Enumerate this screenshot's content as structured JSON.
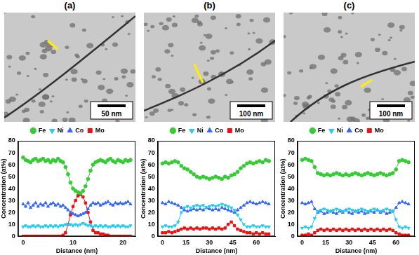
{
  "chart_data": [
    {
      "type": "line",
      "title": "(a)",
      "annotations": [
        "50 nm"
      ],
      "x_label": "Distance (nm)",
      "y_label": "Concentration (at%)",
      "xlim": [
        -1,
        22.5
      ],
      "xticks": [
        0,
        10,
        20
      ],
      "ylim": [
        0,
        80
      ],
      "yticks": [
        0,
        10,
        20,
        30,
        40,
        50,
        60,
        70,
        80
      ],
      "legend": "top",
      "grid": false,
      "x": [
        0,
        0.5,
        1,
        1.5,
        2,
        2.5,
        3,
        3.5,
        4,
        4.5,
        5,
        5.5,
        6,
        6.5,
        7,
        7.5,
        8,
        8.5,
        9,
        9.5,
        10,
        10.5,
        11,
        11.5,
        12,
        12.5,
        13,
        13.5,
        14,
        14.5,
        15,
        15.5,
        16,
        16.5,
        17,
        17.5,
        18,
        18.5,
        19,
        19.5,
        20,
        20.5,
        21,
        21.5
      ],
      "series": [
        {
          "name": "Fe",
          "color": "#33cc33",
          "marker": "circle",
          "line_style": "solid",
          "values": [
            66,
            64,
            63,
            62,
            64,
            65,
            63,
            64,
            65,
            63,
            64,
            62,
            64,
            63,
            65,
            63,
            62,
            58,
            52,
            45,
            40,
            38,
            37,
            36,
            38,
            42,
            48,
            55,
            60,
            62,
            63,
            64,
            63,
            62,
            64,
            65,
            63,
            62,
            64,
            63,
            62,
            64,
            63,
            64
          ]
        },
        {
          "name": "Ni",
          "color": "#22ccee",
          "marker": "triangle_down",
          "line_style": "solid",
          "values": [
            8,
            9,
            8,
            8,
            9,
            8,
            9,
            8,
            8,
            9,
            8,
            9,
            8,
            9,
            8,
            9,
            9,
            10,
            10,
            10,
            9,
            10,
            9,
            10,
            11,
            10,
            9,
            9,
            8,
            9,
            8,
            9,
            8,
            9,
            8,
            8,
            9,
            8,
            9,
            8,
            9,
            8,
            8,
            9
          ]
        },
        {
          "name": "Co",
          "color": "#3366ff",
          "marker": "triangle",
          "line_style": "solid",
          "values": [
            27,
            25,
            28,
            24,
            26,
            28,
            25,
            27,
            26,
            28,
            25,
            27,
            28,
            26,
            27,
            25,
            26,
            24,
            22,
            20,
            19,
            18,
            17,
            18,
            19,
            20,
            23,
            26,
            28,
            27,
            28,
            26,
            27,
            28,
            29,
            27,
            26,
            28,
            27,
            28,
            27,
            28,
            29,
            27
          ]
        },
        {
          "name": "Mo",
          "color": "#ee1111",
          "marker": "square",
          "line_style": "solid",
          "values": [
            0,
            0,
            0,
            0,
            0,
            0,
            0,
            0,
            0,
            0,
            0,
            0,
            0,
            0,
            0,
            0,
            1,
            3,
            10,
            18,
            25,
            30,
            34,
            35,
            33,
            28,
            20,
            12,
            5,
            3,
            3,
            2,
            2,
            1,
            1,
            0,
            0,
            0,
            0,
            0,
            0,
            0,
            0,
            0
          ]
        }
      ]
    },
    {
      "type": "line",
      "title": "(b)",
      "annotations": [
        "100 nm"
      ],
      "x_label": "Distance (nm)",
      "y_label": "Concentration (at%)",
      "xlim": [
        -3,
        72
      ],
      "xticks": [
        0,
        15,
        30,
        45,
        60
      ],
      "ylim": [
        0,
        80
      ],
      "yticks": [
        0,
        10,
        20,
        30,
        40,
        50,
        60,
        70,
        80
      ],
      "legend": "top",
      "grid": false,
      "x": [
        0,
        2,
        4,
        6,
        8,
        10,
        12,
        14,
        16,
        18,
        20,
        22,
        24,
        26,
        28,
        30,
        32,
        34,
        36,
        38,
        40,
        42,
        44,
        46,
        48,
        50,
        52,
        54,
        56,
        58,
        60,
        62,
        64,
        66,
        68
      ],
      "series": [
        {
          "name": "Fe",
          "color": "#33cc33",
          "marker": "circle",
          "line_style": "solid",
          "values": [
            61,
            62,
            61,
            62,
            63,
            62,
            59,
            57,
            56,
            54,
            52,
            50,
            49,
            50,
            49,
            48,
            49,
            50,
            49,
            48,
            50,
            49,
            51,
            52,
            54,
            57,
            59,
            61,
            62,
            61,
            62,
            63,
            62,
            64,
            63
          ]
        },
        {
          "name": "Ni",
          "color": "#22ccee",
          "marker": "triangle_down",
          "line_style": "solid",
          "values": [
            8,
            9,
            8,
            8,
            9,
            12,
            20,
            24,
            25,
            24,
            25,
            26,
            25,
            26,
            24,
            25,
            26,
            25,
            26,
            27,
            26,
            25,
            24,
            22,
            18,
            14,
            10,
            8,
            8,
            9,
            8,
            8,
            9,
            8,
            8
          ]
        },
        {
          "name": "Co",
          "color": "#3366ff",
          "marker": "triangle",
          "line_style": "solid",
          "values": [
            28,
            27,
            29,
            28,
            27,
            26,
            24,
            22,
            21,
            22,
            23,
            22,
            23,
            22,
            24,
            23,
            22,
            23,
            22,
            24,
            23,
            22,
            21,
            20,
            22,
            24,
            26,
            28,
            29,
            28,
            27,
            28,
            29,
            28,
            27
          ]
        },
        {
          "name": "Mo",
          "color": "#ee1111",
          "marker": "square",
          "line_style": "solid",
          "values": [
            3,
            3,
            4,
            3,
            4,
            5,
            6,
            7,
            6,
            7,
            6,
            7,
            6,
            7,
            7,
            6,
            7,
            6,
            7,
            6,
            7,
            10,
            12,
            9,
            6,
            5,
            4,
            3,
            3,
            2,
            3,
            2,
            3,
            2,
            2
          ]
        }
      ]
    },
    {
      "type": "line",
      "title": "(c)",
      "annotations": [
        "100 nm"
      ],
      "x_label": "Distance (nm)",
      "y_label": "Concentration (at%)",
      "xlim": [
        -3,
        72
      ],
      "xticks": [
        0,
        15,
        30,
        45,
        60
      ],
      "ylim": [
        0,
        80
      ],
      "yticks": [
        0,
        10,
        20,
        30,
        40,
        50,
        60,
        70,
        80
      ],
      "legend": "top",
      "grid": false,
      "x": [
        0,
        2,
        4,
        6,
        8,
        10,
        12,
        14,
        16,
        18,
        20,
        22,
        24,
        26,
        28,
        30,
        32,
        34,
        36,
        38,
        40,
        42,
        44,
        46,
        48,
        50,
        52,
        54,
        56,
        58,
        60,
        62,
        64,
        66,
        68
      ],
      "series": [
        {
          "name": "Fe",
          "color": "#33cc33",
          "marker": "circle",
          "line_style": "solid",
          "values": [
            64,
            65,
            64,
            63,
            58,
            53,
            52,
            51,
            52,
            51,
            52,
            53,
            52,
            51,
            52,
            51,
            52,
            53,
            52,
            51,
            52,
            53,
            52,
            51,
            52,
            53,
            52,
            51,
            52,
            53,
            56,
            63,
            64,
            63,
            62
          ]
        },
        {
          "name": "Ni",
          "color": "#22ccee",
          "marker": "triangle_down",
          "line_style": "solid",
          "values": [
            7,
            8,
            7,
            8,
            15,
            21,
            22,
            23,
            22,
            21,
            22,
            23,
            22,
            21,
            22,
            23,
            22,
            21,
            22,
            23,
            22,
            21,
            22,
            23,
            22,
            21,
            22,
            23,
            22,
            21,
            14,
            8,
            7,
            8,
            7
          ]
        },
        {
          "name": "Co",
          "color": "#3366ff",
          "marker": "triangle",
          "line_style": "solid",
          "values": [
            28,
            27,
            28,
            29,
            23,
            20,
            21,
            19,
            20,
            21,
            20,
            19,
            21,
            20,
            22,
            20,
            19,
            21,
            20,
            21,
            19,
            20,
            21,
            20,
            22,
            20,
            21,
            19,
            20,
            21,
            24,
            28,
            29,
            28,
            27
          ]
        },
        {
          "name": "Mo",
          "color": "#ee1111",
          "marker": "square",
          "line_style": "solid",
          "values": [
            1,
            1,
            2,
            1,
            3,
            5,
            6,
            5,
            6,
            5,
            6,
            5,
            6,
            5,
            6,
            5,
            6,
            5,
            6,
            5,
            6,
            5,
            6,
            5,
            6,
            5,
            6,
            5,
            6,
            5,
            3,
            2,
            1,
            1,
            1
          ]
        }
      ]
    }
  ]
}
